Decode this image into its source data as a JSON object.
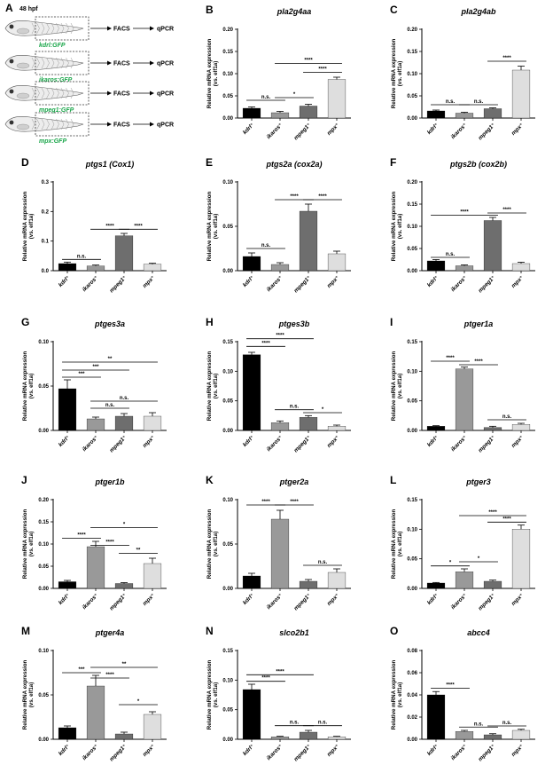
{
  "figure": {
    "fish_panel": {
      "letter": "A",
      "stage_label": "48 hpf",
      "rows": [
        {
          "label": "kdrl:GFP",
          "step1": "FACS",
          "step2": "qPCR"
        },
        {
          "label": "ikaros:GFP",
          "step1": "FACS",
          "step2": "qPCR"
        },
        {
          "label": "mpeg1:GFP",
          "step1": "FACS",
          "step2": "qPCR"
        },
        {
          "label": "mpx:GFP",
          "step1": "FACS",
          "step2": "qPCR"
        }
      ]
    },
    "colors": {
      "bars": [
        "#000000",
        "#999999",
        "#6e6e6e",
        "#dedede"
      ]
    },
    "ylabel_line1": "Relative mRNA expression",
    "ylabel_line2": "(vs. elf1a)"
  },
  "chart_data": [
    {
      "letter": "B",
      "type": "bar",
      "title": "pla2g4aa",
      "categories": [
        "kdrl⁺",
        "ikaros⁺",
        "mpeg1⁺",
        "mpx⁺"
      ],
      "values": [
        0.022,
        0.012,
        0.027,
        0.087
      ],
      "errors": [
        0.003,
        0.003,
        0.004,
        0.005
      ],
      "yticks": [
        "0.00",
        "0.05",
        "0.10",
        "0.15",
        "0.20"
      ],
      "ylim": [
        0,
        0.2
      ],
      "sig": [
        {
          "from": 0,
          "to": 1,
          "y": 0.04,
          "label": "n.s."
        },
        {
          "from": 1,
          "to": 2,
          "y": 0.046,
          "label": "*"
        },
        {
          "from": 1,
          "to": 3,
          "y": 0.123,
          "label": "****"
        },
        {
          "from": 2,
          "to": 3,
          "y": 0.103,
          "label": "****"
        }
      ]
    },
    {
      "letter": "C",
      "type": "bar",
      "title": "pla2g4ab",
      "categories": [
        "kdrl⁺",
        "ikaros⁺",
        "mpeg1⁺",
        "mpx⁺"
      ],
      "values": [
        0.016,
        0.011,
        0.021,
        0.108
      ],
      "errors": [
        0.002,
        0.002,
        0.002,
        0.009
      ],
      "yticks": [
        "0.00",
        "0.05",
        "0.10",
        "0.15",
        "0.20"
      ],
      "ylim": [
        0,
        0.2
      ],
      "sig": [
        {
          "from": 0,
          "to": 1,
          "y": 0.03,
          "label": "n.s."
        },
        {
          "from": 1,
          "to": 2,
          "y": 0.03,
          "label": "n.s."
        },
        {
          "from": 2,
          "to": 3,
          "y": 0.128,
          "label": "****"
        }
      ]
    },
    {
      "letter": "D",
      "type": "bar",
      "title": "ptgs1 (Cox1)",
      "categories": [
        "kdrl⁺",
        "ikaros⁺",
        "mpeg1⁺",
        "mpx⁺"
      ],
      "values": [
        0.024,
        0.016,
        0.118,
        0.022
      ],
      "errors": [
        0.005,
        0.003,
        0.008,
        0.003
      ],
      "yticks": [
        "0.0",
        "0.1",
        "0.2",
        "0.3"
      ],
      "ylim": [
        0,
        0.3
      ],
      "sig": [
        {
          "from": 0,
          "to": 1,
          "y": 0.038,
          "label": "n.s."
        },
        {
          "from": 1,
          "to": 2,
          "y": 0.14,
          "label": "****"
        },
        {
          "from": 2,
          "to": 3,
          "y": 0.14,
          "label": "****"
        }
      ]
    },
    {
      "letter": "E",
      "type": "bar",
      "title": "ptgs2a (cox2a)",
      "categories": [
        "kdrl⁺",
        "ikaros⁺",
        "mpeg1⁺",
        "mpx⁺"
      ],
      "values": [
        0.016,
        0.007,
        0.067,
        0.019
      ],
      "errors": [
        0.004,
        0.002,
        0.008,
        0.003
      ],
      "yticks": [
        "0.00",
        "0.05",
        "0.10"
      ],
      "ylim": [
        0,
        0.1
      ],
      "sig": [
        {
          "from": 0,
          "to": 1,
          "y": 0.025,
          "label": "n.s."
        },
        {
          "from": 1,
          "to": 2,
          "y": 0.08,
          "label": "****"
        },
        {
          "from": 2,
          "to": 3,
          "y": 0.08,
          "label": "****"
        }
      ]
    },
    {
      "letter": "F",
      "type": "bar",
      "title": "ptgs2b (cox2b)",
      "categories": [
        "kdrl⁺",
        "ikaros⁺",
        "mpeg1⁺",
        "mpx⁺"
      ],
      "values": [
        0.022,
        0.011,
        0.113,
        0.016
      ],
      "errors": [
        0.003,
        0.002,
        0.007,
        0.003
      ],
      "yticks": [
        "0.00",
        "0.05",
        "0.10",
        "0.15",
        "0.20"
      ],
      "ylim": [
        0,
        0.2
      ],
      "sig": [
        {
          "from": 0,
          "to": 1,
          "y": 0.03,
          "label": "n.s."
        },
        {
          "from": 0,
          "to": 2,
          "y": 0.125,
          "label": "****"
        },
        {
          "from": 2,
          "to": 3,
          "y": 0.13,
          "label": "****"
        }
      ]
    },
    {
      "letter": "G",
      "type": "bar",
      "title": "ptges3a",
      "categories": [
        "kdrl⁺",
        "ikaros⁺",
        "mpeg1⁺",
        "mpx⁺"
      ],
      "values": [
        0.047,
        0.013,
        0.016,
        0.016
      ],
      "errors": [
        0.01,
        0.002,
        0.003,
        0.004
      ],
      "yticks": [
        "0.00",
        "0.05",
        "0.10"
      ],
      "ylim": [
        0,
        0.1
      ],
      "sig": [
        {
          "from": 0,
          "to": 1,
          "y": 0.06,
          "label": "***"
        },
        {
          "from": 0,
          "to": 2,
          "y": 0.068,
          "label": "***"
        },
        {
          "from": 0,
          "to": 3,
          "y": 0.077,
          "label": "**"
        },
        {
          "from": 1,
          "to": 2,
          "y": 0.025,
          "label": "n.s."
        },
        {
          "from": 1,
          "to": 3,
          "y": 0.033,
          "label": "n.s."
        }
      ]
    },
    {
      "letter": "H",
      "type": "bar",
      "title": "ptges3b",
      "categories": [
        "kdrl⁺",
        "ikaros⁺",
        "mpeg1⁺",
        "mpx⁺"
      ],
      "values": [
        0.128,
        0.013,
        0.022,
        0.007
      ],
      "errors": [
        0.004,
        0.003,
        0.003,
        0.002
      ],
      "yticks": [
        "0.00",
        "0.05",
        "0.10",
        "0.15"
      ],
      "ylim": [
        0,
        0.15
      ],
      "sig": [
        {
          "from": 0,
          "to": 1,
          "y": 0.142,
          "label": "****"
        },
        {
          "from": 0,
          "to": 2,
          "y": 0.155,
          "label": "****"
        },
        {
          "from": 1,
          "to": 2,
          "y": 0.035,
          "label": "n.s."
        },
        {
          "from": 2,
          "to": 3,
          "y": 0.03,
          "label": "*"
        }
      ]
    },
    {
      "letter": "I",
      "type": "bar",
      "title": "ptger1a",
      "categories": [
        "kdrl⁺",
        "ikaros⁺",
        "mpeg1⁺",
        "mpx⁺"
      ],
      "values": [
        0.007,
        0.104,
        0.005,
        0.01
      ],
      "errors": [
        0.001,
        0.003,
        0.002,
        0.002
      ],
      "yticks": [
        "0.00",
        "0.05",
        "0.10",
        "0.15"
      ],
      "ylim": [
        0,
        0.15
      ],
      "sig": [
        {
          "from": 0,
          "to": 1,
          "y": 0.117,
          "label": "****"
        },
        {
          "from": 1,
          "to": 2,
          "y": 0.111,
          "label": "****"
        },
        {
          "from": 2,
          "to": 3,
          "y": 0.018,
          "label": "n.s."
        }
      ]
    },
    {
      "letter": "J",
      "type": "bar",
      "title": "ptger1b",
      "categories": [
        "kdrl⁺",
        "ikaros⁺",
        "mpeg1⁺",
        "mpx⁺"
      ],
      "values": [
        0.015,
        0.094,
        0.011,
        0.056
      ],
      "errors": [
        0.003,
        0.012,
        0.002,
        0.012
      ],
      "yticks": [
        "0.00",
        "0.05",
        "0.10",
        "0.15",
        "0.20"
      ],
      "ylim": [
        0,
        0.2
      ],
      "sig": [
        {
          "from": 0,
          "to": 1,
          "y": 0.113,
          "label": "****"
        },
        {
          "from": 1,
          "to": 2,
          "y": 0.097,
          "label": "****"
        },
        {
          "from": 1,
          "to": 3,
          "y": 0.137,
          "label": "*"
        },
        {
          "from": 2,
          "to": 3,
          "y": 0.079,
          "label": "**"
        }
      ]
    },
    {
      "letter": "K",
      "type": "bar",
      "title": "ptger2a",
      "categories": [
        "kdrl⁺",
        "ikaros⁺",
        "mpeg1⁺",
        "mpx⁺"
      ],
      "values": [
        0.014,
        0.078,
        0.008,
        0.018
      ],
      "errors": [
        0.003,
        0.01,
        0.002,
        0.004
      ],
      "yticks": [
        "0.00",
        "0.05",
        "0.10"
      ],
      "ylim": [
        0,
        0.1
      ],
      "sig": [
        {
          "from": 0,
          "to": 1,
          "y": 0.094,
          "label": "****"
        },
        {
          "from": 1,
          "to": 2,
          "y": 0.094,
          "label": "****"
        },
        {
          "from": 2,
          "to": 3,
          "y": 0.026,
          "label": "n.s."
        }
      ]
    },
    {
      "letter": "L",
      "type": "bar",
      "title": "ptger3",
      "categories": [
        "kdrl⁺",
        "ikaros⁺",
        "mpeg1⁺",
        "mpx⁺"
      ],
      "values": [
        0.009,
        0.028,
        0.012,
        0.1
      ],
      "errors": [
        0.001,
        0.005,
        0.002,
        0.007
      ],
      "yticks": [
        "0.00",
        "0.05",
        "0.10",
        "0.15"
      ],
      "ylim": [
        0,
        0.15
      ],
      "sig": [
        {
          "from": 0,
          "to": 1,
          "y": 0.038,
          "label": "*"
        },
        {
          "from": 1,
          "to": 2,
          "y": 0.045,
          "label": "*"
        },
        {
          "from": 1,
          "to": 3,
          "y": 0.123,
          "label": "****"
        },
        {
          "from": 2,
          "to": 3,
          "y": 0.112,
          "label": "****"
        }
      ]
    },
    {
      "letter": "M",
      "type": "bar",
      "title": "ptger4a",
      "categories": [
        "kdrl⁺",
        "ikaros⁺",
        "mpeg1⁺",
        "mpx⁺"
      ],
      "values": [
        0.013,
        0.06,
        0.006,
        0.028
      ],
      "errors": [
        0.002,
        0.012,
        0.002,
        0.003
      ],
      "yticks": [
        "0.00",
        "0.05",
        "0.10"
      ],
      "ylim": [
        0,
        0.1
      ],
      "sig": [
        {
          "from": 0,
          "to": 1,
          "y": 0.075,
          "label": "***"
        },
        {
          "from": 1,
          "to": 2,
          "y": 0.069,
          "label": "****"
        },
        {
          "from": 1,
          "to": 3,
          "y": 0.081,
          "label": "**"
        },
        {
          "from": 2,
          "to": 3,
          "y": 0.039,
          "label": "*"
        }
      ]
    },
    {
      "letter": "N",
      "type": "bar",
      "title": "slco2b1",
      "categories": [
        "kdrl⁺",
        "ikaros⁺",
        "mpeg1⁺",
        "mpx⁺"
      ],
      "values": [
        0.084,
        0.004,
        0.012,
        0.004
      ],
      "errors": [
        0.009,
        0.001,
        0.003,
        0.001
      ],
      "yticks": [
        "0.00",
        "0.05",
        "0.10",
        "0.15"
      ],
      "ylim": [
        0,
        0.15
      ],
      "sig": [
        {
          "from": 0,
          "to": 1,
          "y": 0.098,
          "label": "****"
        },
        {
          "from": 0,
          "to": 2,
          "y": 0.109,
          "label": "****"
        },
        {
          "from": 1,
          "to": 2,
          "y": 0.023,
          "label": "n.s."
        },
        {
          "from": 2,
          "to": 3,
          "y": 0.023,
          "label": "n.s."
        }
      ]
    },
    {
      "letter": "O",
      "type": "bar",
      "title": "abcc4",
      "categories": [
        "kdrl⁺",
        "ikaros⁺",
        "mpeg1⁺",
        "mpx⁺"
      ],
      "values": [
        0.04,
        0.007,
        0.004,
        0.008
      ],
      "errors": [
        0.003,
        0.001,
        0.001,
        0.001
      ],
      "yticks": [
        "0.00",
        "0.02",
        "0.04",
        "0.06",
        "0.08"
      ],
      "ylim": [
        0,
        0.08
      ],
      "sig": [
        {
          "from": 0,
          "to": 1,
          "y": 0.046,
          "label": "****"
        },
        {
          "from": 1,
          "to": 2,
          "y": 0.011,
          "label": "n.s."
        },
        {
          "from": 2,
          "to": 3,
          "y": 0.012,
          "label": "n.s."
        }
      ]
    }
  ]
}
